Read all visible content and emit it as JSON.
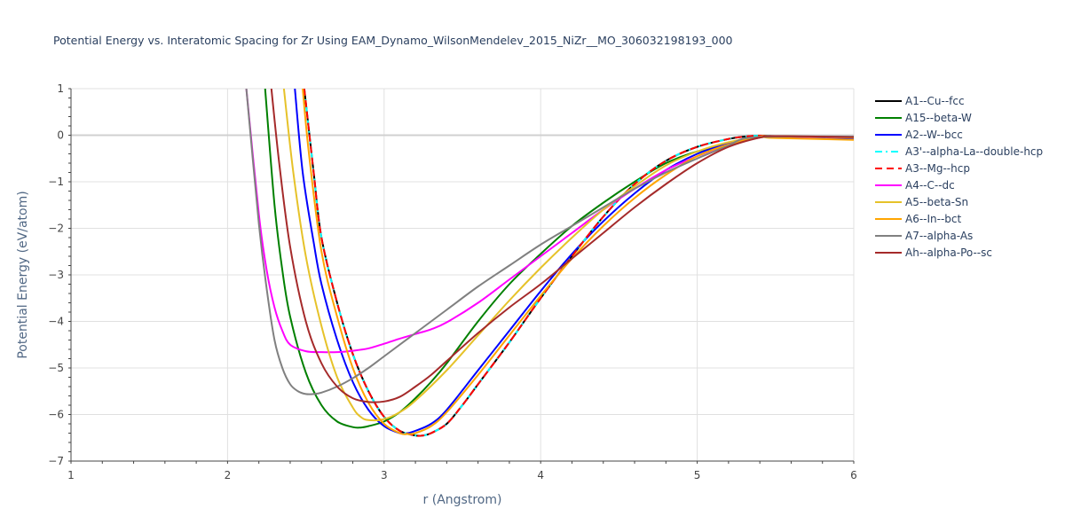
{
  "chart_data": {
    "type": "line",
    "title": "Potential Energy vs. Interatomic Spacing for Zr Using EAM_Dynamo_WilsonMendelev_2015_NiZr__MO_306032198193_000",
    "xlabel": "r (Angstrom)",
    "ylabel": "Potential Energy (eV/atom)",
    "xlim": [
      1,
      6
    ],
    "ylim": [
      -7,
      1
    ],
    "xticks": [
      "1",
      "2",
      "3",
      "4",
      "5",
      "6"
    ],
    "yticks": [
      "1",
      "0",
      "−1",
      "−2",
      "−3",
      "−4",
      "−5",
      "−6",
      "−7"
    ],
    "grid": true,
    "legend_position": "right",
    "series": [
      {
        "name": "A1--Cu--fcc",
        "color": "#000000",
        "dash": "solid",
        "x": [
          2.49,
          2.55,
          2.6,
          2.7,
          2.8,
          2.9,
          3.0,
          3.1,
          3.2,
          3.25,
          3.3,
          3.4,
          3.5,
          3.6,
          3.8,
          4.0,
          4.2,
          4.4,
          4.6,
          4.8,
          5.0,
          5.2,
          5.3,
          5.4,
          5.5,
          6.0
        ],
        "y": [
          1.0,
          -0.8,
          -2.2,
          -3.6,
          -4.7,
          -5.5,
          -6.05,
          -6.35,
          -6.45,
          -6.45,
          -6.4,
          -6.2,
          -5.8,
          -5.35,
          -4.45,
          -3.5,
          -2.6,
          -1.75,
          -1.05,
          -0.55,
          -0.25,
          -0.08,
          -0.03,
          -0.01,
          -0.02,
          -0.05
        ]
      },
      {
        "name": "A15--beta-W",
        "color": "#008000",
        "dash": "solid",
        "x": [
          2.24,
          2.3,
          2.35,
          2.4,
          2.5,
          2.6,
          2.7,
          2.8,
          2.85,
          2.9,
          3.0,
          3.1,
          3.2,
          3.3,
          3.4,
          3.6,
          3.8,
          4.0,
          4.2,
          4.4,
          4.6,
          4.8,
          5.0,
          5.2,
          5.35,
          5.5,
          6.0
        ],
        "y": [
          1.0,
          -1.5,
          -2.9,
          -3.9,
          -5.1,
          -5.8,
          -6.15,
          -6.27,
          -6.28,
          -6.25,
          -6.15,
          -5.95,
          -5.65,
          -5.3,
          -4.9,
          -4.0,
          -3.2,
          -2.55,
          -1.95,
          -1.45,
          -1.0,
          -0.6,
          -0.35,
          -0.2,
          -0.05,
          -0.02,
          -0.05
        ]
      },
      {
        "name": "A2--W--bcc",
        "color": "#0000ff",
        "dash": "solid",
        "x": [
          2.43,
          2.48,
          2.55,
          2.6,
          2.7,
          2.8,
          2.9,
          3.0,
          3.1,
          3.15,
          3.2,
          3.3,
          3.4,
          3.6,
          3.8,
          4.0,
          4.2,
          4.4,
          4.6,
          4.8,
          5.0,
          5.2,
          5.4,
          5.5,
          6.0
        ],
        "y": [
          1.0,
          -0.8,
          -2.3,
          -3.2,
          -4.4,
          -5.3,
          -5.9,
          -6.25,
          -6.4,
          -6.4,
          -6.35,
          -6.2,
          -5.9,
          -5.05,
          -4.2,
          -3.35,
          -2.55,
          -1.85,
          -1.25,
          -0.75,
          -0.4,
          -0.18,
          -0.05,
          -0.03,
          -0.07
        ]
      },
      {
        "name": "A3'--alpha-La--double-hcp",
        "color": "#00ffff",
        "dash": "dashdot",
        "x": [
          2.49,
          2.55,
          2.6,
          2.7,
          2.8,
          2.9,
          3.0,
          3.1,
          3.2,
          3.25,
          3.3,
          3.4,
          3.5,
          3.6,
          3.8,
          4.0,
          4.2,
          4.4,
          4.6,
          4.8,
          5.0,
          5.2,
          5.3,
          5.4,
          5.5,
          6.0
        ],
        "y": [
          1.0,
          -0.8,
          -2.2,
          -3.6,
          -4.7,
          -5.5,
          -6.05,
          -6.35,
          -6.45,
          -6.45,
          -6.4,
          -6.2,
          -5.8,
          -5.35,
          -4.45,
          -3.5,
          -2.6,
          -1.75,
          -1.05,
          -0.55,
          -0.25,
          -0.08,
          -0.03,
          -0.01,
          -0.02,
          -0.05
        ]
      },
      {
        "name": "A3--Mg--hcp",
        "color": "#ff0000",
        "dash": "dash",
        "x": [
          2.49,
          2.55,
          2.6,
          2.7,
          2.8,
          2.9,
          3.0,
          3.1,
          3.2,
          3.25,
          3.3,
          3.4,
          3.5,
          3.6,
          3.8,
          4.0,
          4.2,
          4.4,
          4.6,
          4.8,
          5.0,
          5.2,
          5.3,
          5.4,
          5.5,
          6.0
        ],
        "y": [
          1.0,
          -0.8,
          -2.2,
          -3.6,
          -4.7,
          -5.5,
          -6.05,
          -6.35,
          -6.45,
          -6.45,
          -6.4,
          -6.2,
          -5.8,
          -5.35,
          -4.45,
          -3.5,
          -2.6,
          -1.75,
          -1.05,
          -0.55,
          -0.25,
          -0.08,
          -0.03,
          -0.01,
          -0.02,
          -0.05
        ]
      },
      {
        "name": "A4--C--dc",
        "color": "#ff00ff",
        "dash": "solid",
        "x": [
          2.12,
          2.2,
          2.25,
          2.3,
          2.35,
          2.4,
          2.5,
          2.6,
          2.7,
          2.8,
          2.9,
          3.0,
          3.1,
          3.2,
          3.3,
          3.4,
          3.6,
          3.8,
          4.0,
          4.2,
          4.4,
          4.6,
          4.8,
          5.0,
          5.2,
          5.4,
          5.5,
          6.0
        ],
        "y": [
          1.0,
          -1.7,
          -2.9,
          -3.7,
          -4.2,
          -4.5,
          -4.64,
          -4.66,
          -4.66,
          -4.63,
          -4.58,
          -4.48,
          -4.37,
          -4.27,
          -4.17,
          -4.02,
          -3.6,
          -3.1,
          -2.6,
          -2.1,
          -1.6,
          -1.15,
          -0.75,
          -0.45,
          -0.2,
          -0.05,
          -0.03,
          -0.05
        ]
      },
      {
        "name": "A5--beta-Sn",
        "color": "#e6c229",
        "dash": "solid",
        "x": [
          2.36,
          2.42,
          2.5,
          2.6,
          2.7,
          2.8,
          2.85,
          2.9,
          3.0,
          3.1,
          3.2,
          3.4,
          3.6,
          3.8,
          4.0,
          4.2,
          4.4,
          4.6,
          4.8,
          5.0,
          5.2,
          5.4,
          5.5,
          6.0
        ],
        "y": [
          1.0,
          -0.8,
          -2.6,
          -4.1,
          -5.2,
          -5.85,
          -6.05,
          -6.12,
          -6.1,
          -5.95,
          -5.7,
          -5.05,
          -4.3,
          -3.55,
          -2.85,
          -2.2,
          -1.6,
          -1.1,
          -0.65,
          -0.35,
          -0.15,
          -0.03,
          -0.02,
          -0.05
        ]
      },
      {
        "name": "A6--In--bct",
        "color": "#ffa500",
        "dash": "solid",
        "x": [
          2.48,
          2.52,
          2.6,
          2.7,
          2.8,
          2.9,
          3.0,
          3.1,
          3.15,
          3.2,
          3.3,
          3.4,
          3.6,
          3.8,
          4.0,
          4.2,
          4.4,
          4.6,
          4.8,
          5.0,
          5.2,
          5.4,
          5.5,
          6.0
        ],
        "y": [
          1.0,
          -0.4,
          -2.5,
          -3.9,
          -5.0,
          -5.75,
          -6.2,
          -6.4,
          -6.42,
          -6.4,
          -6.25,
          -5.95,
          -5.15,
          -4.3,
          -3.45,
          -2.65,
          -1.95,
          -1.35,
          -0.85,
          -0.45,
          -0.2,
          -0.05,
          -0.06,
          -0.1
        ]
      },
      {
        "name": "A7--alpha-As",
        "color": "#808080",
        "dash": "solid",
        "x": [
          2.12,
          2.2,
          2.25,
          2.3,
          2.35,
          2.4,
          2.45,
          2.5,
          2.55,
          2.6,
          2.7,
          2.8,
          2.9,
          3.0,
          3.2,
          3.4,
          3.6,
          3.8,
          4.0,
          4.2,
          4.4,
          4.6,
          4.8,
          5.0,
          5.2,
          5.3,
          5.5,
          6.0
        ],
        "y": [
          1.0,
          -1.9,
          -3.3,
          -4.4,
          -5.0,
          -5.35,
          -5.5,
          -5.56,
          -5.56,
          -5.53,
          -5.4,
          -5.22,
          -5.0,
          -4.75,
          -4.25,
          -3.75,
          -3.25,
          -2.8,
          -2.35,
          -1.95,
          -1.55,
          -1.15,
          -0.8,
          -0.5,
          -0.22,
          -0.07,
          -0.03,
          -0.03
        ]
      },
      {
        "name": "Ah--alpha-Po--sc",
        "color": "#a52a2a",
        "dash": "solid",
        "x": [
          2.28,
          2.33,
          2.4,
          2.5,
          2.6,
          2.7,
          2.8,
          2.9,
          3.0,
          3.1,
          3.2,
          3.3,
          3.4,
          3.6,
          3.8,
          4.0,
          4.2,
          4.4,
          4.6,
          4.8,
          5.0,
          5.2,
          5.4,
          5.5,
          6.0
        ],
        "y": [
          1.0,
          -0.6,
          -2.4,
          -4.0,
          -4.9,
          -5.4,
          -5.65,
          -5.73,
          -5.72,
          -5.62,
          -5.4,
          -5.15,
          -4.85,
          -4.25,
          -3.7,
          -3.2,
          -2.65,
          -2.1,
          -1.55,
          -1.05,
          -0.6,
          -0.25,
          -0.05,
          -0.02,
          -0.04
        ]
      }
    ]
  }
}
